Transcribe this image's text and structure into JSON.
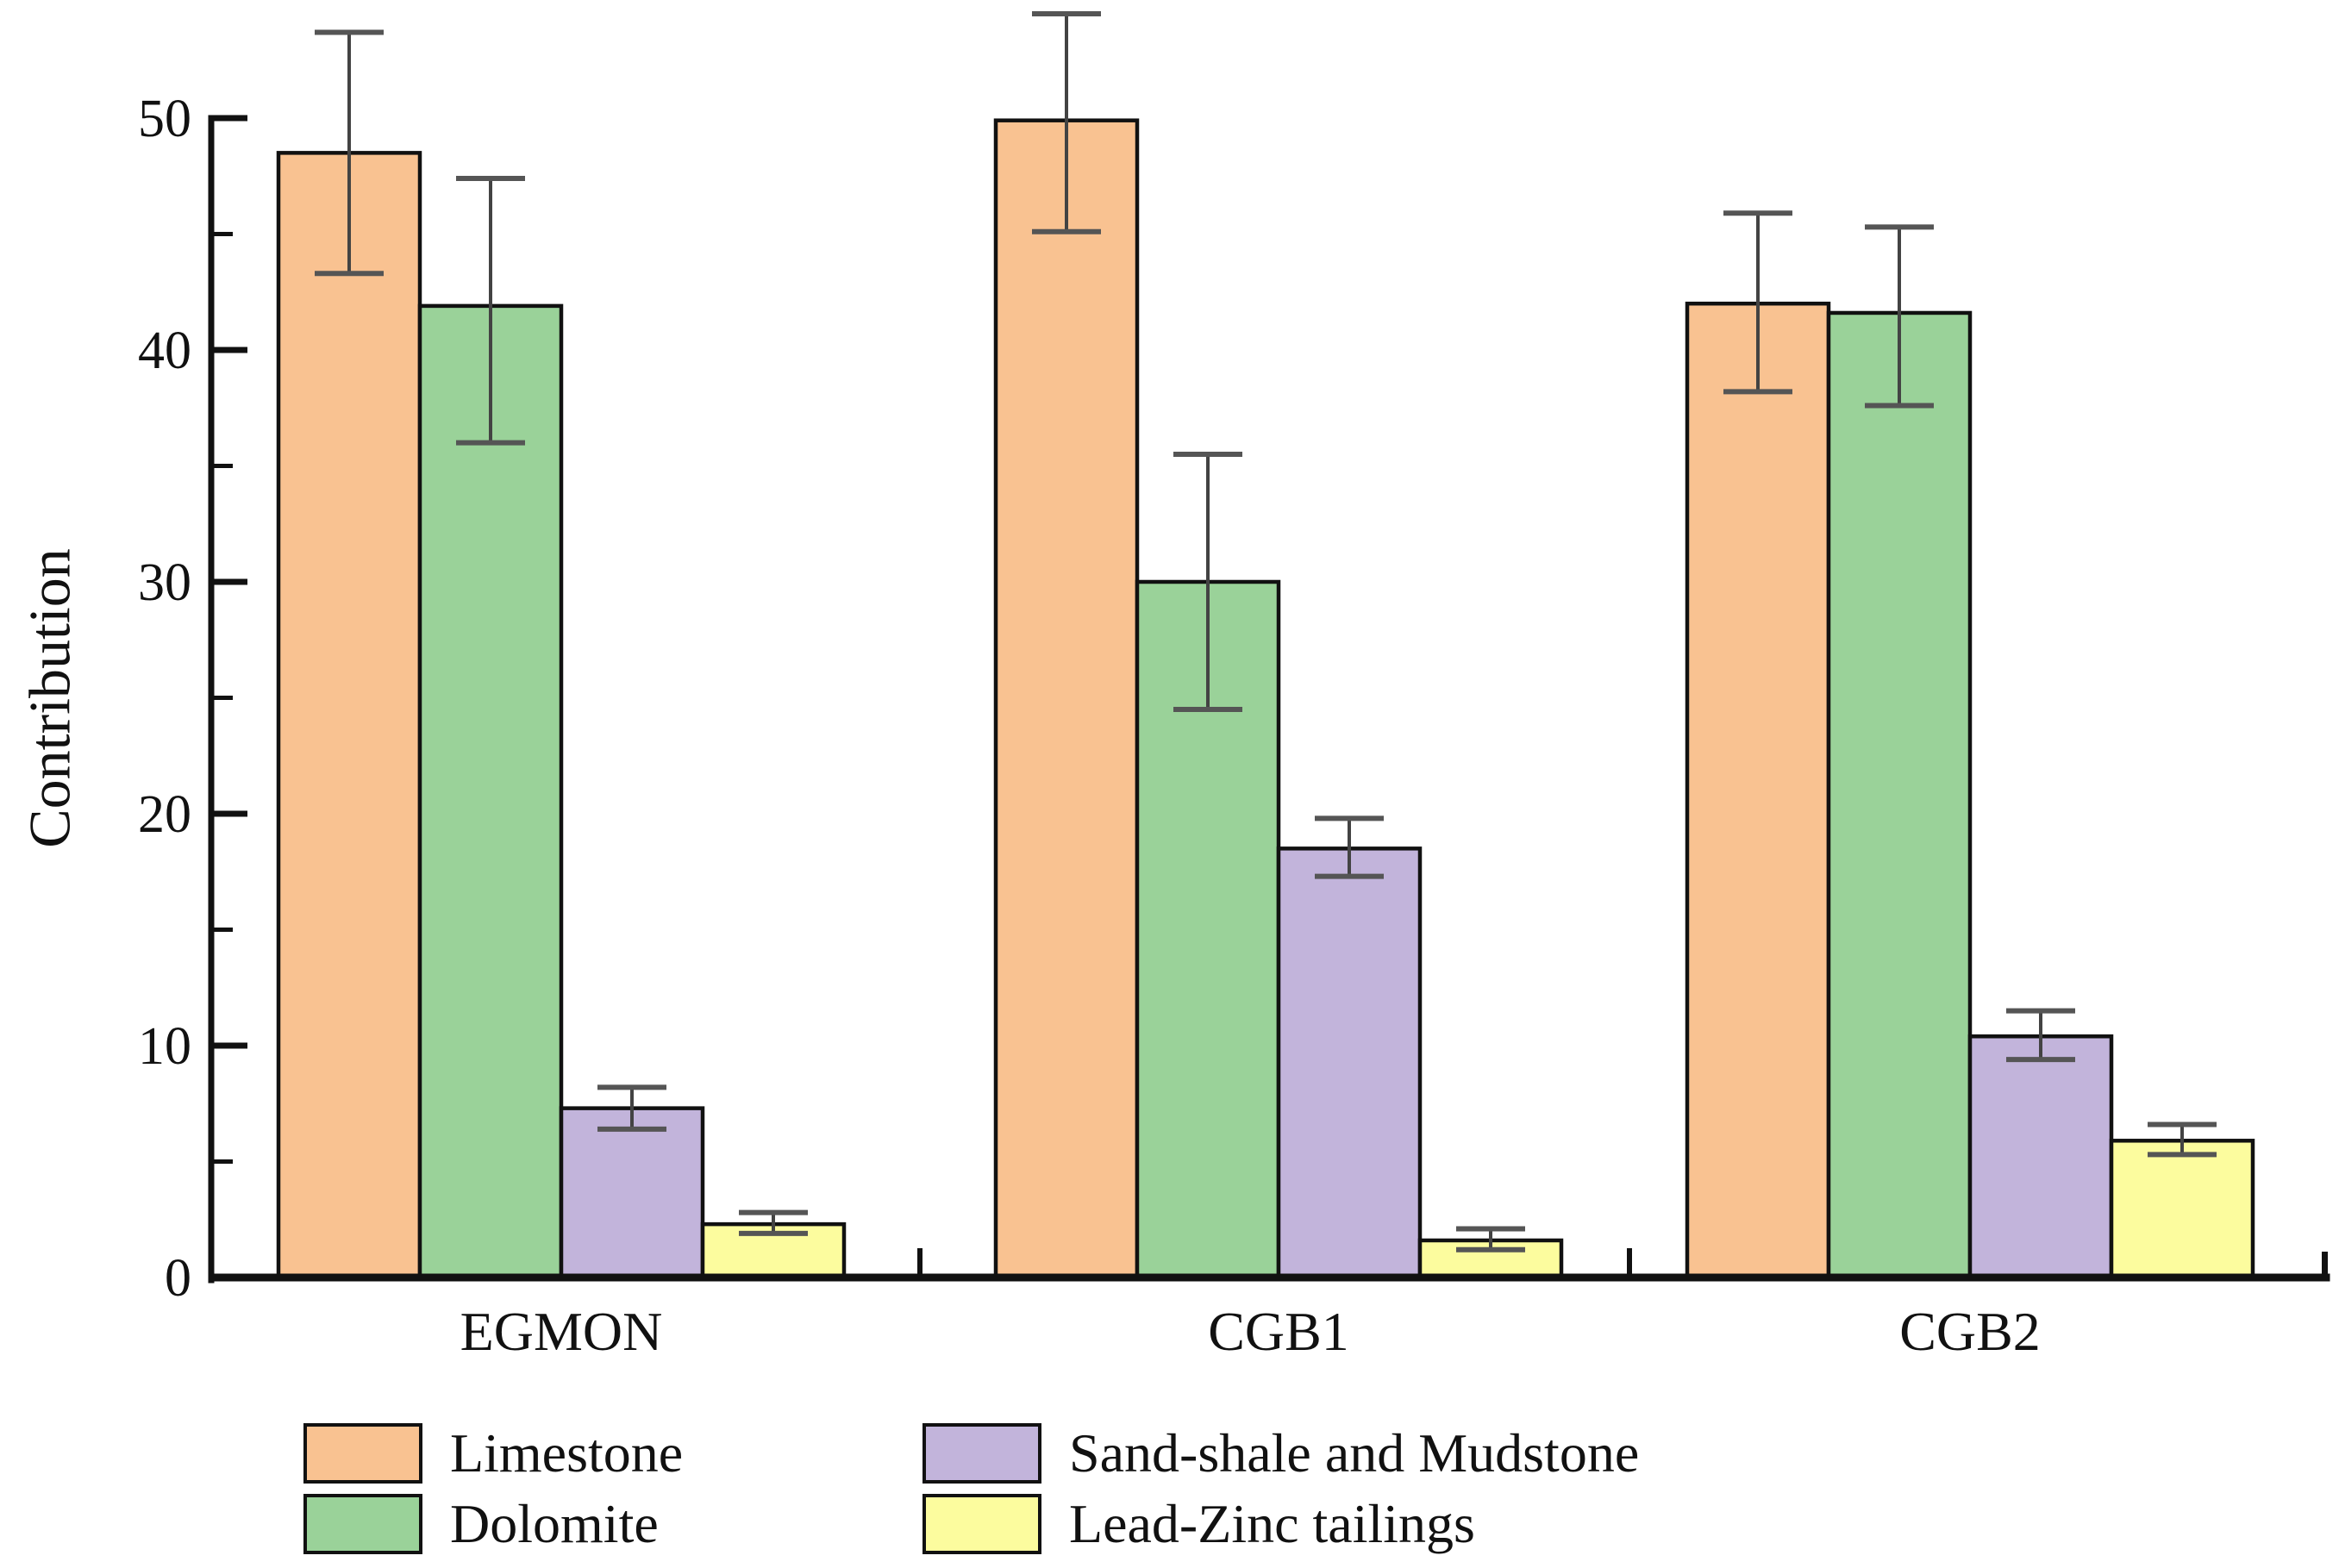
{
  "chart_data": {
    "type": "bar",
    "title": "",
    "xlabel": "",
    "ylabel": "Contribution",
    "categories": [
      "EGMON",
      "CGB1",
      "CGB2"
    ],
    "y_axis": {
      "min": 0,
      "max": 50,
      "major_tick_step": 10,
      "minor_tick_step": 5,
      "tick_labels": [
        "0",
        "10",
        "20",
        "30",
        "40",
        "50"
      ]
    },
    "grid": false,
    "legend_position": "bottom",
    "bar_border_color": "#111111",
    "error_bar_color": "#434343",
    "error_cap_color": "#555555",
    "series": [
      {
        "name": "Limestone",
        "color": "#F9C291",
        "values": [
          48.5,
          49.9,
          42.0
        ],
        "error_low": [
          43.3,
          45.1,
          38.2
        ],
        "error_high": [
          53.7,
          54.5,
          45.9
        ]
      },
      {
        "name": "Dolomite",
        "color": "#9AD299",
        "values": [
          41.9,
          30.0,
          41.6
        ],
        "error_low": [
          36.0,
          24.5,
          37.6
        ],
        "error_high": [
          47.4,
          35.5,
          45.3
        ]
      },
      {
        "name": "Sand-shale and Mudstone",
        "color": "#C2B4DB",
        "values": [
          7.3,
          18.5,
          10.4
        ],
        "error_low": [
          6.4,
          17.3,
          9.4
        ],
        "error_high": [
          8.2,
          19.8,
          11.5
        ]
      },
      {
        "name": "Lead-Zinc tailings",
        "color": "#FCFC9E",
        "values": [
          2.3,
          1.6,
          5.9
        ],
        "error_low": [
          1.9,
          1.2,
          5.3
        ],
        "error_high": [
          2.8,
          2.1,
          6.6
        ]
      }
    ]
  }
}
